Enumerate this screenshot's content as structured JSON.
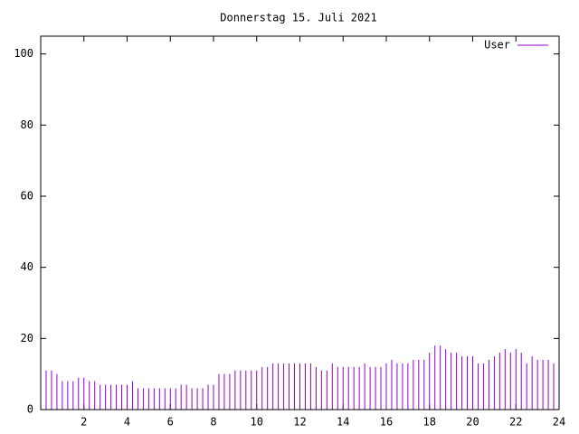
{
  "chart_data": {
    "type": "impulses",
    "title": "Donnerstag 15. Juli 2021",
    "x": [
      0,
      0.25,
      0.5,
      0.75,
      1,
      1.25,
      1.5,
      1.75,
      2,
      2.25,
      2.5,
      2.75,
      3,
      3.25,
      3.5,
      3.75,
      4,
      4.25,
      4.5,
      4.75,
      5,
      5.25,
      5.5,
      5.75,
      6,
      6.25,
      6.5,
      6.75,
      7,
      7.25,
      7.5,
      7.75,
      8,
      8.25,
      8.5,
      8.75,
      9,
      9.25,
      9.5,
      9.75,
      10,
      10.25,
      10.5,
      10.75,
      11,
      11.25,
      11.5,
      11.75,
      12,
      12.25,
      12.5,
      12.75,
      13,
      13.25,
      13.5,
      13.75,
      14,
      14.25,
      14.5,
      14.75,
      15,
      15.25,
      15.5,
      15.75,
      16,
      16.25,
      16.5,
      16.75,
      17,
      17.25,
      17.5,
      17.75,
      18,
      18.25,
      18.5,
      18.75,
      19,
      19.25,
      19.5,
      19.75,
      20,
      20.25,
      20.5,
      20.75,
      21,
      21.25,
      21.5,
      21.75,
      22,
      22.25,
      22.5,
      22.75,
      23,
      23.25,
      23.5,
      23.75,
      24
    ],
    "series": [
      {
        "name": "User",
        "color": "#9400d3",
        "values": [
          13,
          11,
          11,
          10,
          8,
          8,
          8,
          9,
          9,
          8,
          8,
          7,
          7,
          7,
          7,
          7,
          7,
          8,
          6,
          6,
          6,
          6,
          6,
          6,
          6,
          6,
          7,
          7,
          6,
          6,
          6,
          7,
          7,
          10,
          10,
          10,
          11,
          11,
          11,
          11,
          11,
          12,
          12,
          13,
          13,
          13,
          13,
          13,
          13,
          13,
          13,
          12,
          11,
          11,
          13,
          12,
          12,
          12,
          12,
          12,
          13,
          12,
          12,
          12,
          13,
          14,
          13,
          13,
          13,
          14,
          14,
          14,
          16,
          18,
          18,
          17,
          16,
          16,
          15,
          15,
          15,
          13,
          13,
          14,
          15,
          16,
          17,
          16,
          17,
          16,
          13,
          15,
          14,
          14,
          14,
          13,
          12
        ]
      }
    ],
    "xlim": [
      0,
      24
    ],
    "xticks": [
      2,
      4,
      6,
      8,
      10,
      12,
      14,
      16,
      18,
      20,
      22,
      24
    ],
    "ylim": [
      0,
      105
    ],
    "yticks": [
      0,
      20,
      40,
      60,
      80,
      100
    ],
    "legend": "upper right"
  }
}
